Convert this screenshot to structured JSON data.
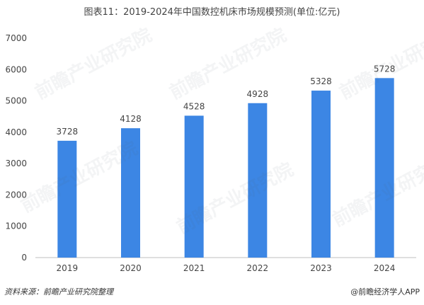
{
  "chart_data": {
    "type": "bar",
    "title": "图表11：2019-2024年中国数控机床市场规模预测(单位:亿元)",
    "categories": [
      "2019",
      "2020",
      "2021",
      "2022",
      "2023",
      "2024"
    ],
    "values": [
      3728,
      4128,
      4528,
      4928,
      5328,
      5728
    ],
    "ylim": [
      0,
      7000
    ],
    "yticks": [
      0,
      1000,
      2000,
      3000,
      4000,
      5000,
      6000,
      7000
    ],
    "grid": false,
    "bar_color": "#3C86E4"
  },
  "footer": {
    "source": "资料来源：前瞻产业研究院整理",
    "brand": "@前瞻经济学人APP"
  },
  "watermark_text": "前瞻产业研究院"
}
